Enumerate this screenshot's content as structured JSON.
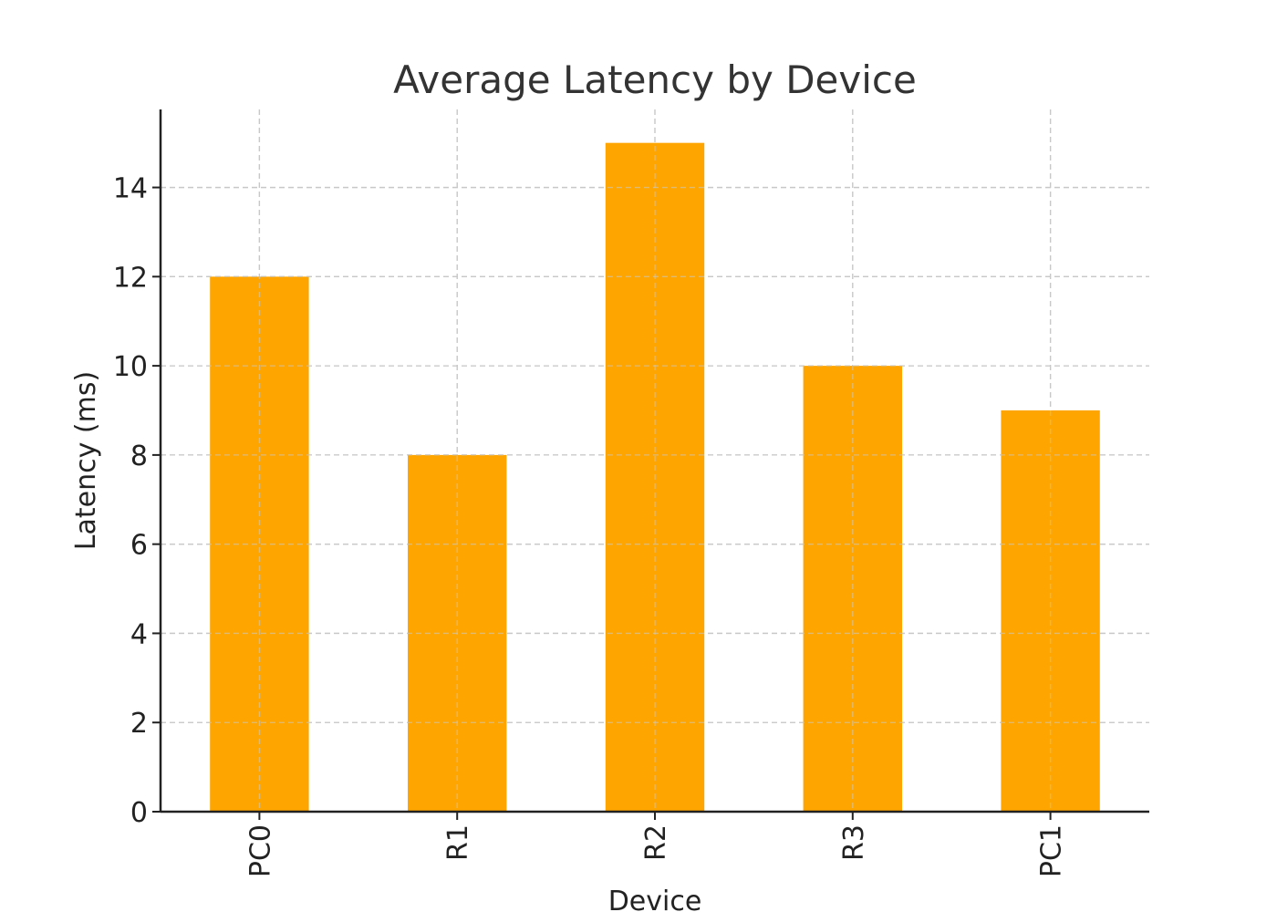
{
  "chart_data": {
    "type": "bar",
    "title": "Average Latency by Device",
    "xlabel": "Device",
    "ylabel": "Latency (ms)",
    "categories": [
      "PC0",
      "R1",
      "R2",
      "R3",
      "PC1"
    ],
    "values": [
      12,
      8,
      15,
      10,
      9
    ],
    "ylim": [
      0,
      15.75
    ],
    "yticks": [
      0,
      2,
      4,
      6,
      8,
      10,
      12,
      14
    ],
    "bar_color": "#FFA500",
    "grid": true,
    "legend": "none"
  }
}
